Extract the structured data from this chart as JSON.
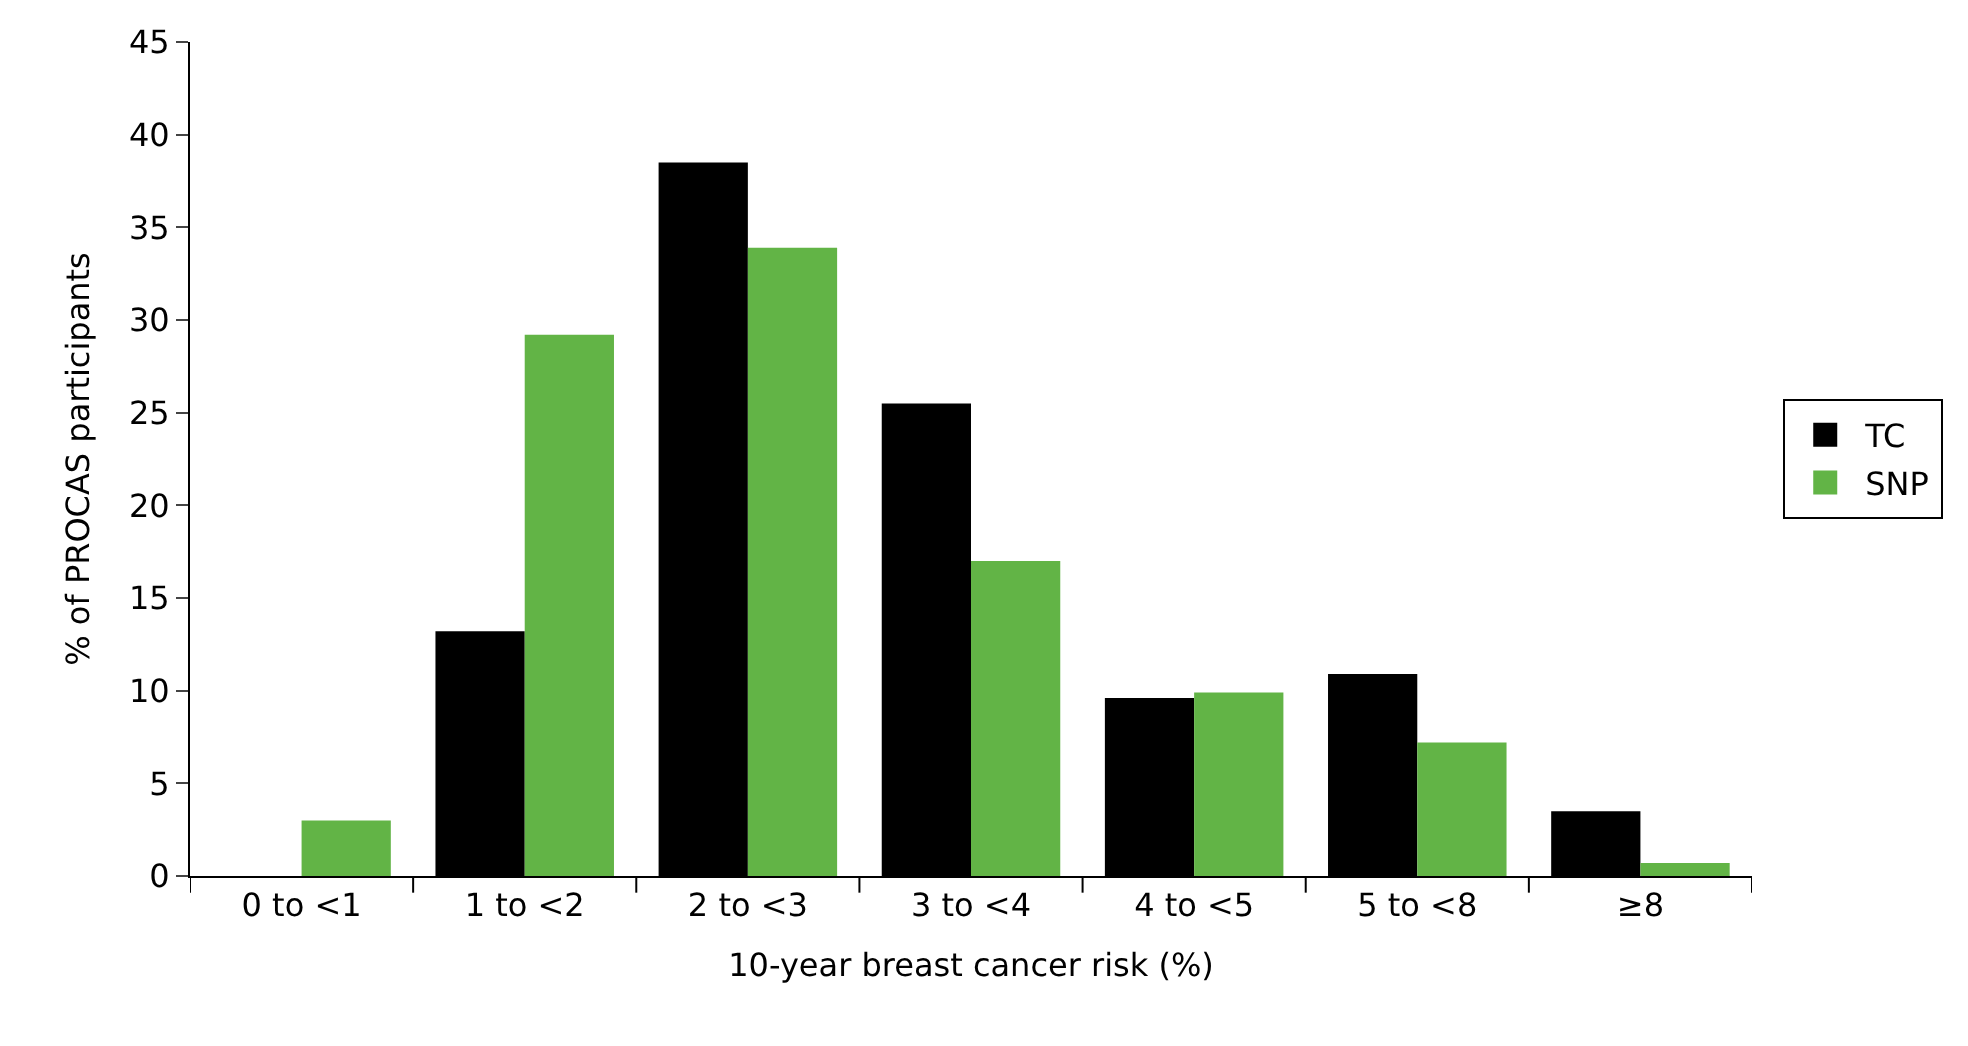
{
  "chart_data": {
    "type": "bar",
    "xlabel": "10-year breast cancer risk (%)",
    "ylabel": "% of PROCAS participants",
    "categories": [
      "0 to <1",
      "1 to <2",
      "2 to <3",
      "3 to <4",
      "4 to <5",
      "5 to <8",
      "≥8"
    ],
    "series": [
      {
        "name": "TC",
        "color": "#000000",
        "values": [
          0,
          13.2,
          38.5,
          25.5,
          9.6,
          10.9,
          3.5
        ]
      },
      {
        "name": "SNP",
        "color": "#62b446",
        "values": [
          3.0,
          29.2,
          33.9,
          17.0,
          9.9,
          7.2,
          0.7
        ]
      }
    ],
    "ylim": [
      0,
      45
    ],
    "yticks": [
      0,
      5,
      10,
      15,
      20,
      25,
      30,
      35,
      40,
      45
    ],
    "legend": "right"
  }
}
